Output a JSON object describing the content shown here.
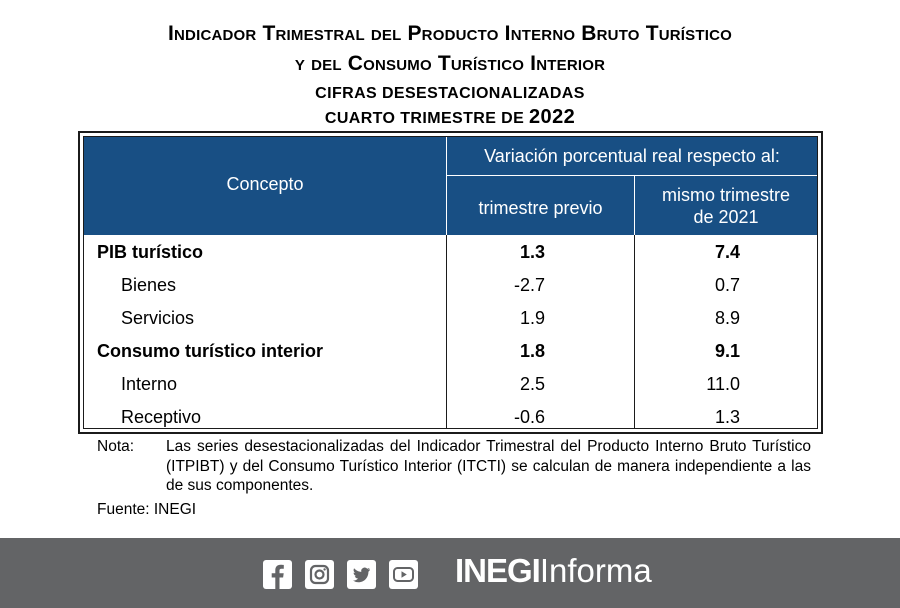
{
  "title": {
    "line1": "Indicador Trimestral del Producto Interno Bruto Turístico",
    "line2": "y del Consumo Turístico Interior",
    "subtitle": "CIFRAS DESESTACIONALIZADAS",
    "period_prefix": "CUARTO TRIMESTRE DE",
    "period_year": "2022"
  },
  "table": {
    "col_concept": "Concepto",
    "col_group": "Variación porcentual real respecto al:",
    "col_prev": "trimestre previo",
    "col_same_line1": "mismo trimestre",
    "col_same_line2": "de 2021",
    "rows": [
      {
        "label": "PIB turístico",
        "prev": "1.3",
        "same": "7.4",
        "bold": true
      },
      {
        "label": "Bienes",
        "prev": "-2.7",
        "same": "0.7",
        "bold": false
      },
      {
        "label": "Servicios",
        "prev": "1.9",
        "same": "8.9",
        "bold": false
      },
      {
        "label": "Consumo turístico interior",
        "prev": "1.8",
        "same": "9.1",
        "bold": true
      },
      {
        "label": "Interno",
        "prev": "2.5",
        "same": "11.0",
        "bold": false
      },
      {
        "label": "Receptivo",
        "prev": "-0.6",
        "same": "1.3",
        "bold": false
      }
    ]
  },
  "notes": {
    "nota_label": "Nota:",
    "nota_text": "Las series desestacionalizadas del Indicador Trimestral del Producto Interno Bruto Turístico (ITPIBT) y del Consumo Turístico Interior (ITCTI) se calculan de manera independiente a las de sus componentes.",
    "fuente": "Fuente: INEGI"
  },
  "footer": {
    "icons": [
      "facebook-icon",
      "instagram-icon",
      "twitter-icon",
      "youtube-icon"
    ],
    "brand_bold": "INEGI",
    "brand_light": "Informa",
    "bg_color": "#636466"
  },
  "colors": {
    "header_blue": "#184f84"
  }
}
